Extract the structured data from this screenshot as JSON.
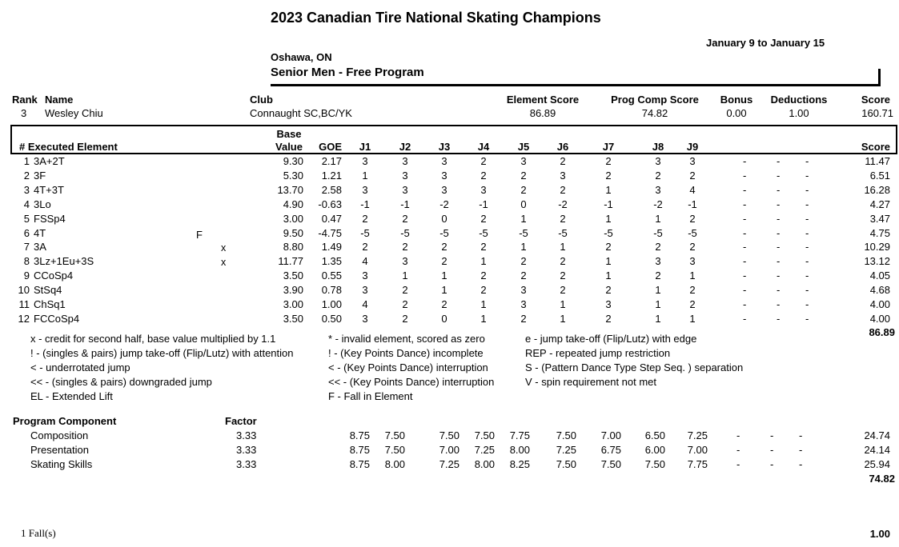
{
  "header": {
    "title": "2023 Canadian Tire National Skating Champions",
    "dates": "January 9 to January 15",
    "location": "Oshawa, ON",
    "category": "Senior Men",
    "segment": " - Free Program"
  },
  "skater_header": {
    "rank_label": "Rank",
    "name_label": "Name",
    "club_label": "Club",
    "element_score_label": "Element Score",
    "pcs_label": "Prog Comp Score",
    "bonus_label": "Bonus",
    "deductions_label": "Deductions",
    "score_label": "Score"
  },
  "skater": {
    "rank": "3",
    "name": "Wesley Chiu",
    "club": "Connaught SC,BC/YK",
    "element_score": "86.89",
    "pcs": "74.82",
    "bonus": "0.00",
    "deductions": "1.00",
    "score": "160.71"
  },
  "elements_header": {
    "num_exec": "# Executed Element",
    "base_top": "Base",
    "base_bottom": "Value",
    "goe": "GOE",
    "judges": [
      "J1",
      "J2",
      "J3",
      "J4",
      "J5",
      "J6",
      "J7",
      "J8",
      "J9"
    ],
    "score": "Score"
  },
  "elements": [
    {
      "n": "1",
      "el": "3A+2T",
      "info": "",
      "half": "",
      "base": "9.30",
      "goe": "2.17",
      "j": [
        "3",
        "3",
        "3",
        "2",
        "3",
        "2",
        "2",
        "3",
        "3"
      ],
      "score": "11.47"
    },
    {
      "n": "2",
      "el": "3F",
      "info": "",
      "half": "",
      "base": "5.30",
      "goe": "1.21",
      "j": [
        "1",
        "3",
        "3",
        "2",
        "2",
        "3",
        "2",
        "2",
        "2"
      ],
      "score": "6.51"
    },
    {
      "n": "3",
      "el": "4T+3T",
      "info": "",
      "half": "",
      "base": "13.70",
      "goe": "2.58",
      "j": [
        "3",
        "3",
        "3",
        "3",
        "2",
        "2",
        "1",
        "3",
        "4"
      ],
      "score": "16.28"
    },
    {
      "n": "4",
      "el": "3Lo",
      "info": "",
      "half": "",
      "base": "4.90",
      "goe": "-0.63",
      "j": [
        "-1",
        "-1",
        "-2",
        "-1",
        "0",
        "-2",
        "-1",
        "-2",
        "-1"
      ],
      "score": "4.27"
    },
    {
      "n": "5",
      "el": "FSSp4",
      "info": "",
      "half": "",
      "base": "3.00",
      "goe": "0.47",
      "j": [
        "2",
        "2",
        "0",
        "2",
        "1",
        "2",
        "1",
        "1",
        "2"
      ],
      "score": "3.47"
    },
    {
      "n": "6",
      "el": "4T",
      "info": "F",
      "half": "",
      "base": "9.50",
      "goe": "-4.75",
      "j": [
        "-5",
        "-5",
        "-5",
        "-5",
        "-5",
        "-5",
        "-5",
        "-5",
        "-5"
      ],
      "score": "4.75"
    },
    {
      "n": "7",
      "el": "3A",
      "info": "",
      "half": "x",
      "base": "8.80",
      "goe": "1.49",
      "j": [
        "2",
        "2",
        "2",
        "2",
        "1",
        "1",
        "2",
        "2",
        "2"
      ],
      "score": "10.29"
    },
    {
      "n": "8",
      "el": "3Lz+1Eu+3S",
      "info": "",
      "half": "x",
      "base": "11.77",
      "goe": "1.35",
      "j": [
        "4",
        "3",
        "2",
        "1",
        "2",
        "2",
        "1",
        "3",
        "3"
      ],
      "score": "13.12"
    },
    {
      "n": "9",
      "el": "CCoSp4",
      "info": "",
      "half": "",
      "base": "3.50",
      "goe": "0.55",
      "j": [
        "3",
        "1",
        "1",
        "2",
        "2",
        "2",
        "1",
        "2",
        "1"
      ],
      "score": "4.05"
    },
    {
      "n": "10",
      "el": "StSq4",
      "info": "",
      "half": "",
      "base": "3.90",
      "goe": "0.78",
      "j": [
        "3",
        "2",
        "1",
        "2",
        "3",
        "2",
        "2",
        "1",
        "2"
      ],
      "score": "4.68"
    },
    {
      "n": "11",
      "el": "ChSq1",
      "info": "",
      "half": "",
      "base": "3.00",
      "goe": "1.00",
      "j": [
        "4",
        "2",
        "2",
        "1",
        "3",
        "1",
        "3",
        "1",
        "2"
      ],
      "score": "4.00"
    },
    {
      "n": "12",
      "el": "FCCoSp4",
      "info": "",
      "half": "",
      "base": "3.50",
      "goe": "0.50",
      "j": [
        "3",
        "2",
        "0",
        "1",
        "2",
        "1",
        "2",
        "1",
        "1"
      ],
      "score": "4.00"
    }
  ],
  "dash": "-",
  "elements_total": "86.89",
  "legend": {
    "col1": [
      "x - credit for second half, base value multiplied by 1.1",
      "! - (singles & pairs) jump take-off (Flip/Lutz) with attention",
      "< - underrotated jump",
      "<< - (singles & pairs) downgraded jump",
      "EL - Extended Lift"
    ],
    "col2": [
      "* - invalid element, scored as zero",
      "! - (Key Points Dance) incomplete",
      "< - (Key Points Dance) interruption",
      "<< - (Key Points Dance) interruption",
      "F - Fall in Element"
    ],
    "col3": [
      "e - jump take-off (Flip/Lutz) with edge",
      "REP - repeated jump restriction",
      "S - (Pattern Dance Type Step Seq. ) separation",
      "V - spin requirement not met"
    ]
  },
  "pc_header": {
    "label": "Program Component",
    "factor": "Factor"
  },
  "components": [
    {
      "name": "Composition",
      "factor": "3.33",
      "j": [
        "8.75",
        "7.50",
        "7.50",
        "7.50",
        "7.75",
        "7.50",
        "7.00",
        "6.50",
        "7.25"
      ],
      "score": "24.74"
    },
    {
      "name": "Presentation",
      "factor": "3.33",
      "j": [
        "8.75",
        "7.50",
        "7.00",
        "7.25",
        "8.00",
        "7.25",
        "6.75",
        "6.00",
        "7.00"
      ],
      "score": "24.14"
    },
    {
      "name": "Skating Skills",
      "factor": "3.33",
      "j": [
        "8.75",
        "8.00",
        "7.25",
        "8.00",
        "8.25",
        "7.50",
        "7.50",
        "7.50",
        "7.75"
      ],
      "score": "25.94"
    }
  ],
  "pc_total": "74.82",
  "footer": {
    "falls": "1 Fall(s)",
    "deduction": "1.00"
  }
}
